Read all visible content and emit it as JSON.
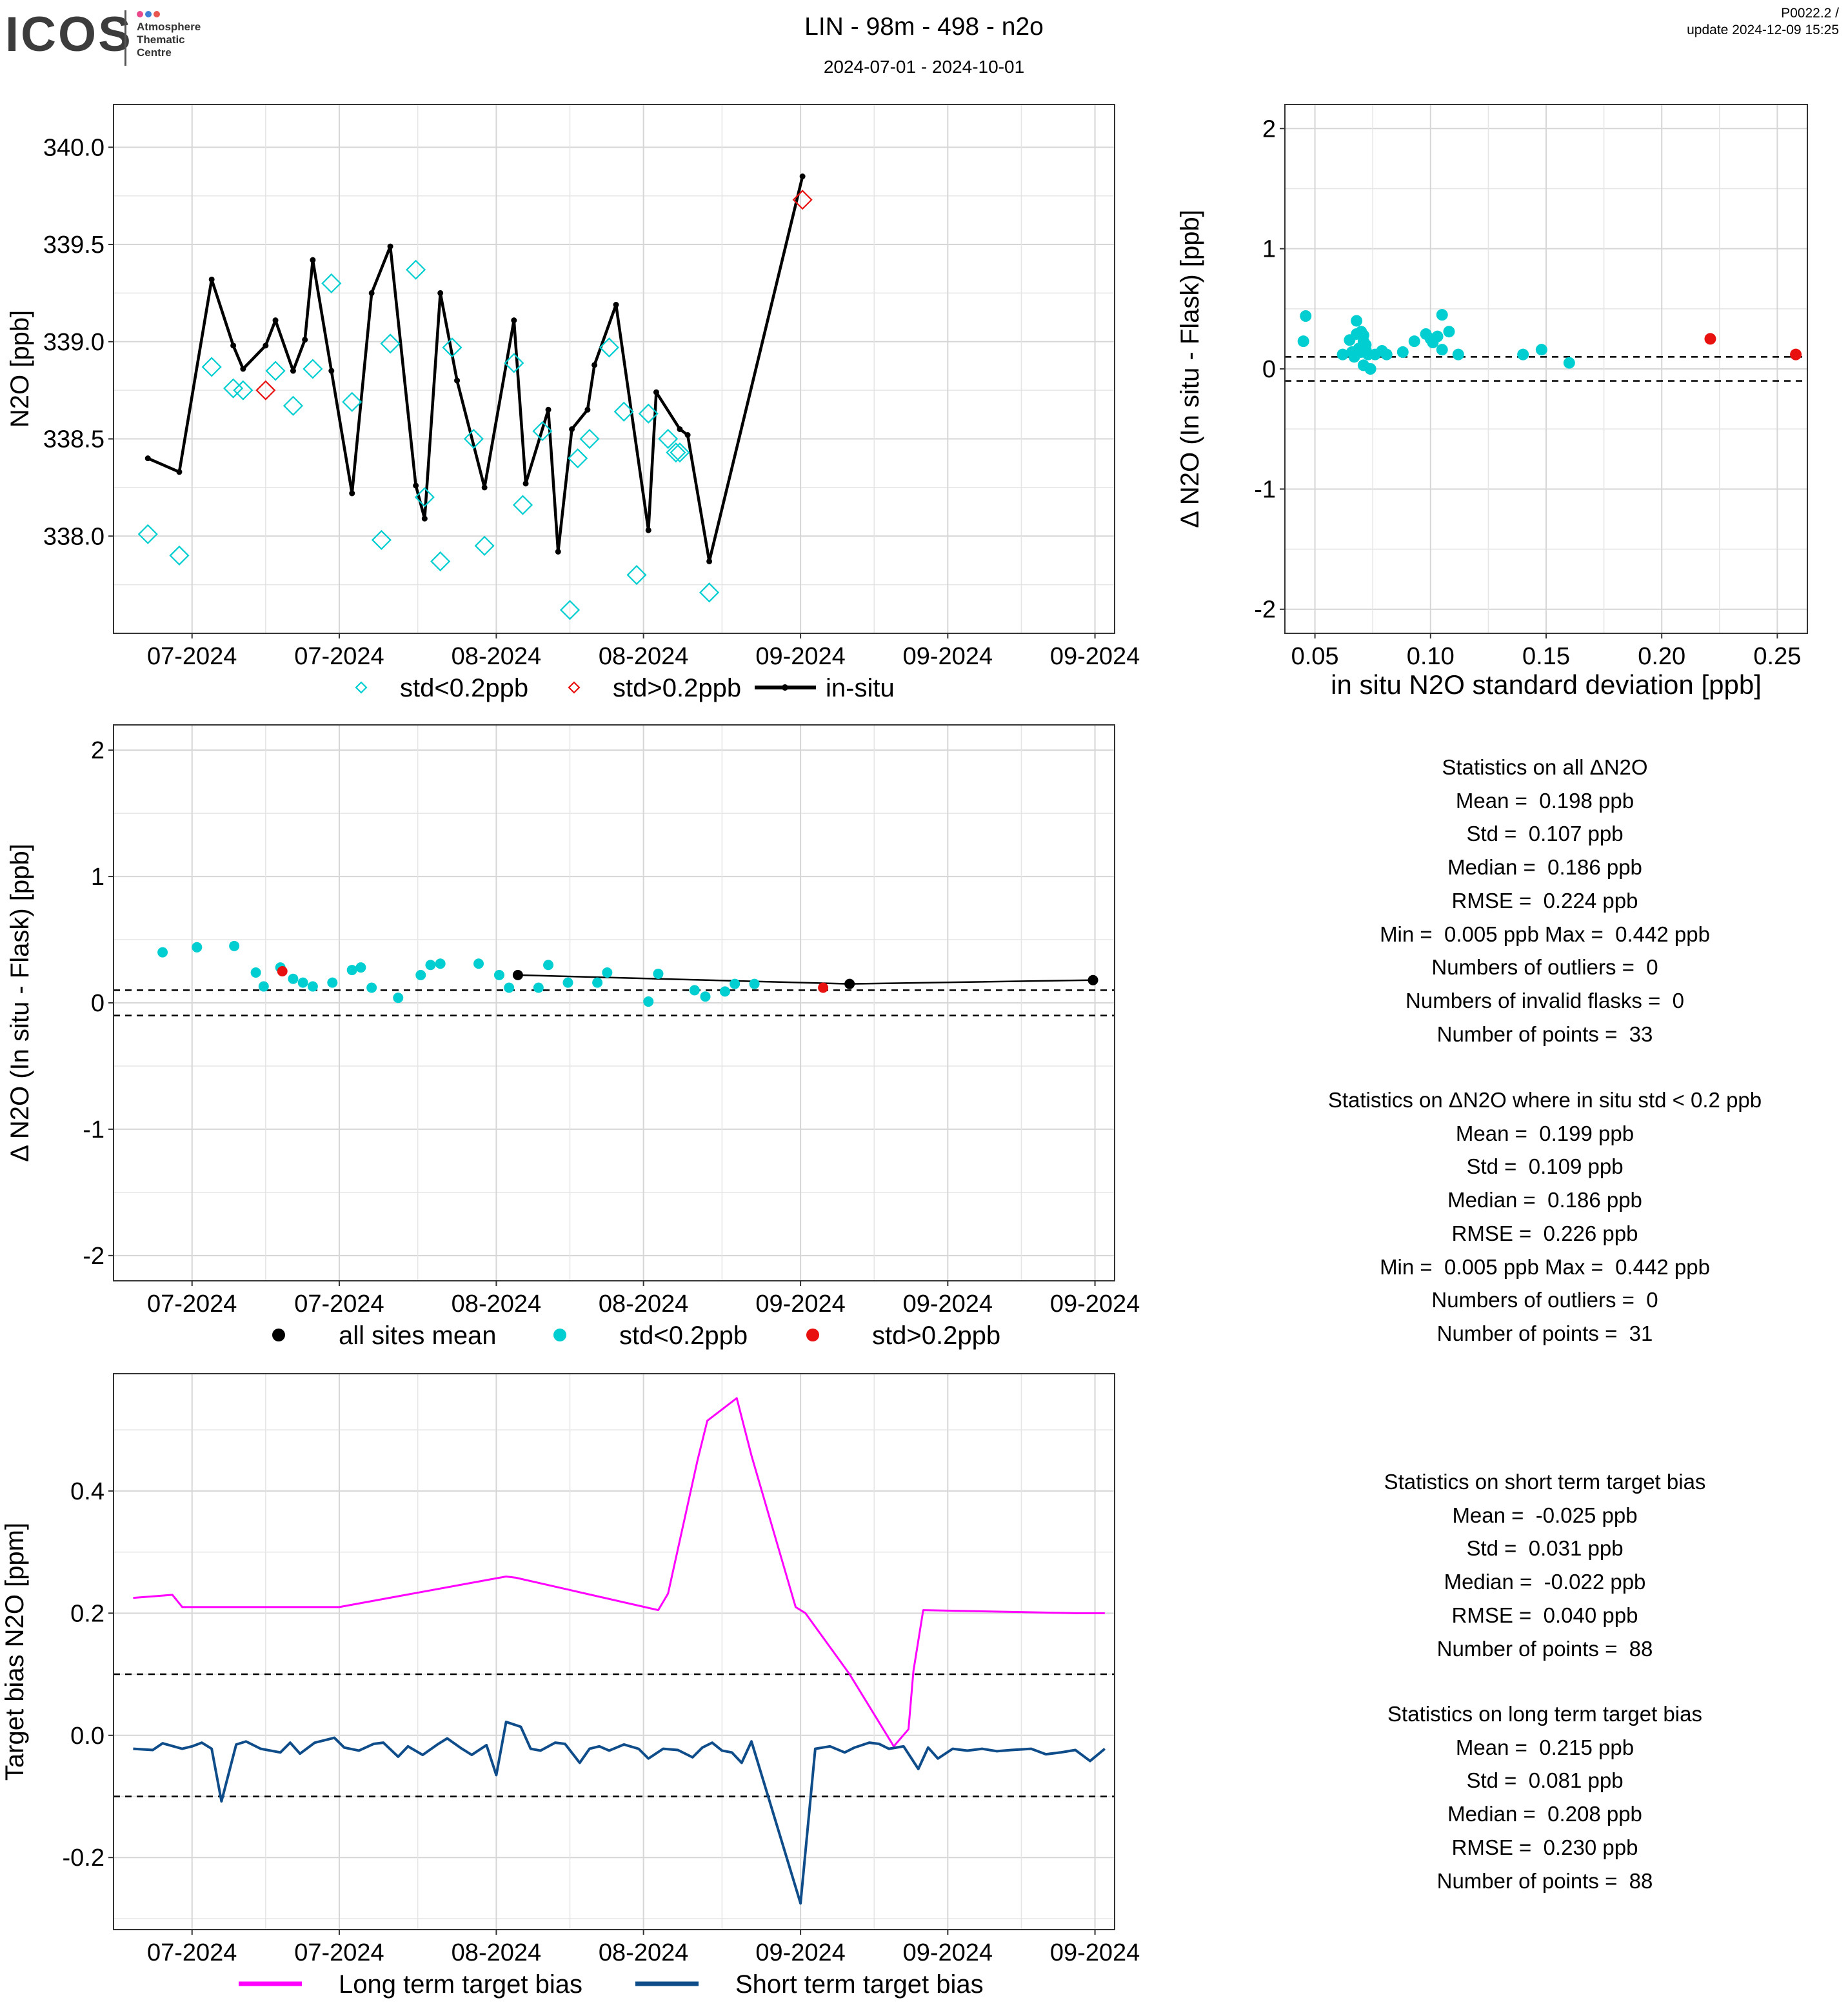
{
  "header": {
    "title": "LIN - 98m - 498 - n2o",
    "dates": "2024-07-01 - 2024-10-01",
    "version": "P0022.2 /",
    "update": "update  2024-12-09 15:25",
    "logo": "ICOS",
    "logo_lines": [
      "Atmosphere",
      "Thematic",
      "Centre"
    ]
  },
  "colors": {
    "cyan": "#00CED1",
    "red": "#E8110F",
    "black": "#000000",
    "magenta": "#FF00FF",
    "navy": "#0F4C8A",
    "grid": "#E5E5E5",
    "grid_major": "#D6D6D6"
  },
  "chart_data": [
    {
      "type": "scatter",
      "id": "timeseries_n2o",
      "ylabel": "N2O [ppb]",
      "x_ticks": [
        "07-2024",
        "07-2024",
        "08-2024",
        "08-2024",
        "09-2024",
        "09-2024",
        "09-2024"
      ],
      "x_tick_days": [
        15,
        30,
        46,
        61,
        77,
        92,
        107
      ],
      "xlim": [
        7,
        109
      ],
      "ylim": [
        337.5,
        340.22
      ],
      "y_ticks": [
        338.0,
        338.5,
        339.0,
        339.5,
        340.0
      ],
      "y_tick_labels": [
        "338.0",
        "338.5",
        "339.0",
        "339.5",
        "340.0"
      ],
      "legend": [
        "std<0.2ppb",
        "std>0.2ppb",
        "in-situ"
      ],
      "series": [
        {
          "name": "std<0.2ppb",
          "x": [
            10.5,
            13.7,
            17.0,
            19.2,
            20.2,
            23.5,
            25.3,
            27.3,
            29.2,
            31.3,
            34.3,
            35.2,
            37.8,
            38.7,
            40.3,
            41.5,
            43.7,
            44.8,
            47.8,
            48.7,
            50.7,
            53.5,
            54.3,
            55.5,
            57.5,
            59.0,
            60.3,
            61.5,
            63.5,
            64.3,
            64.7,
            67.7
          ],
          "y": [
            338.01,
            337.9,
            338.87,
            338.76,
            338.75,
            338.85,
            338.67,
            338.86,
            339.3,
            338.69,
            337.98,
            338.99,
            339.37,
            338.2,
            337.87,
            338.97,
            338.5,
            337.95,
            338.89,
            338.16,
            338.54,
            337.62,
            338.4,
            338.5,
            338.97,
            338.64,
            337.8,
            338.63,
            338.5,
            338.43,
            338.43,
            337.71
          ]
        },
        {
          "name": "std>0.2ppb",
          "x": [
            22.5,
            77.2
          ],
          "y": [
            338.75,
            339.73
          ]
        },
        {
          "name": "in-situ",
          "x": [
            10.5,
            13.7,
            17.0,
            19.2,
            20.2,
            22.5,
            23.5,
            25.3,
            26.5,
            27.3,
            29.2,
            31.3,
            33.3,
            35.2,
            37.8,
            38.7,
            40.3,
            42.0,
            44.8,
            47.8,
            49.0,
            51.3,
            52.3,
            53.7,
            55.3,
            56.0,
            58.2,
            61.5,
            62.3,
            64.7,
            65.5,
            67.7,
            77.2
          ],
          "y": [
            338.4,
            338.33,
            339.32,
            338.98,
            338.86,
            338.98,
            339.11,
            338.85,
            339.01,
            339.42,
            338.85,
            338.22,
            339.25,
            339.49,
            338.26,
            338.09,
            339.25,
            338.8,
            338.25,
            339.11,
            338.27,
            338.65,
            337.92,
            338.55,
            338.65,
            338.88,
            339.19,
            338.03,
            338.74,
            338.55,
            338.52,
            337.87,
            339.85
          ]
        }
      ]
    },
    {
      "type": "scatter",
      "id": "delta_vs_std",
      "xlabel": "in situ N2O standard deviation [ppb]",
      "ylabel": "Δ N2O (In situ - Flask) [ppb]",
      "xlim": [
        0.037,
        0.263
      ],
      "ylim": [
        -2.2,
        2.2
      ],
      "x_ticks": [
        0.05,
        0.1,
        0.15,
        0.2,
        0.25
      ],
      "x_tick_labels": [
        "0.05",
        "0.10",
        "0.15",
        "0.20",
        "0.25"
      ],
      "y_ticks": [
        -2,
        -1,
        0,
        1,
        2
      ],
      "y_tick_labels": [
        "-2",
        "-1",
        "0",
        "1",
        "2"
      ],
      "hlines": [
        0.1,
        -0.1
      ],
      "series": [
        {
          "name": "std<0.2ppb",
          "x": [
            0.046,
            0.045,
            0.062,
            0.065,
            0.066,
            0.067,
            0.068,
            0.068,
            0.069,
            0.07,
            0.07,
            0.071,
            0.071,
            0.071,
            0.072,
            0.072,
            0.073,
            0.074,
            0.076,
            0.079,
            0.081,
            0.088,
            0.093,
            0.098,
            0.1,
            0.101,
            0.103,
            0.105,
            0.105,
            0.108,
            0.112,
            0.14,
            0.148,
            0.16
          ],
          "y": [
            0.44,
            0.23,
            0.12,
            0.24,
            0.14,
            0.1,
            0.29,
            0.4,
            0.17,
            0.14,
            0.31,
            0.28,
            0.23,
            0.03,
            0.2,
            0.16,
            0.12,
            0.0,
            0.12,
            0.15,
            0.12,
            0.14,
            0.23,
            0.29,
            0.25,
            0.22,
            0.27,
            0.45,
            0.16,
            0.31,
            0.12,
            0.12,
            0.16,
            0.05
          ]
        },
        {
          "name": "std>0.2ppb",
          "x": [
            0.221,
            0.258
          ],
          "y": [
            0.25,
            0.12
          ]
        }
      ]
    },
    {
      "type": "scatter",
      "id": "delta_timeseries",
      "ylabel": "Δ N2O (In situ - Flask) [ppb]",
      "x_ticks": [
        "07-2024",
        "07-2024",
        "08-2024",
        "08-2024",
        "09-2024",
        "09-2024",
        "09-2024"
      ],
      "x_tick_days": [
        15,
        30,
        46,
        61,
        77,
        92,
        107
      ],
      "xlim": [
        7,
        109
      ],
      "ylim": [
        -2.2,
        2.2
      ],
      "y_ticks": [
        -2,
        -1,
        0,
        1,
        2
      ],
      "y_tick_labels": [
        "-2",
        "-1",
        "0",
        "1",
        "2"
      ],
      "hlines": [
        0.1,
        -0.1
      ],
      "legend": [
        "all sites mean",
        "std<0.2ppb",
        "std>0.2ppb"
      ],
      "series": [
        {
          "name": "std<0.2ppb",
          "x": [
            12.0,
            15.5,
            19.3,
            21.5,
            22.3,
            24.0,
            25.3,
            26.3,
            27.3,
            29.3,
            31.3,
            32.2,
            33.3,
            36.0,
            38.3,
            39.3,
            40.3,
            44.2,
            46.3,
            47.3,
            50.3,
            51.3,
            53.3,
            56.3,
            57.3,
            61.5,
            62.5,
            66.2,
            67.3,
            69.3,
            70.3,
            72.3
          ],
          "y": [
            0.4,
            0.44,
            0.45,
            0.24,
            0.13,
            0.28,
            0.19,
            0.16,
            0.13,
            0.16,
            0.26,
            0.28,
            0.12,
            0.04,
            0.22,
            0.3,
            0.31,
            0.31,
            0.22,
            0.12,
            0.12,
            0.3,
            0.16,
            0.16,
            0.24,
            0.01,
            0.23,
            0.1,
            0.05,
            0.09,
            0.15,
            0.15
          ]
        },
        {
          "name": "std>0.2ppb",
          "x": [
            24.2,
            79.3
          ],
          "y": [
            0.25,
            0.12
          ]
        },
        {
          "name": "all sites mean",
          "x": [
            48.2,
            82.0,
            106.8
          ],
          "y": [
            0.22,
            0.15,
            0.18
          ]
        }
      ]
    },
    {
      "type": "line",
      "id": "target_bias",
      "ylabel": "Target bias N2O [ppm]",
      "x_ticks": [
        "07-2024",
        "07-2024",
        "08-2024",
        "08-2024",
        "09-2024",
        "09-2024",
        "09-2024"
      ],
      "x_tick_days": [
        15,
        30,
        46,
        61,
        77,
        92,
        107
      ],
      "xlim": [
        7,
        109
      ],
      "ylim": [
        -0.318,
        0.592
      ],
      "y_ticks": [
        -0.2,
        0.0,
        0.2,
        0.4
      ],
      "y_tick_labels": [
        "-0.2",
        "0.0",
        "0.2",
        "0.4"
      ],
      "hlines": [
        0.1,
        -0.1
      ],
      "legend": [
        "Long term target bias",
        "Short term target bias"
      ],
      "series": [
        {
          "name": "Long term target bias",
          "x": [
            9.0,
            13.0,
            14.0,
            22.0,
            30.0,
            47.0,
            48.0,
            62.5,
            63.5,
            66.5,
            67.5,
            70.5,
            72.0,
            76.5,
            77.5,
            82.0,
            86.5,
            88.0,
            88.5,
            89.5,
            105.0,
            108.0
          ],
          "y": [
            0.225,
            0.23,
            0.21,
            0.21,
            0.21,
            0.26,
            0.258,
            0.205,
            0.232,
            0.45,
            0.515,
            0.552,
            0.458,
            0.21,
            0.2,
            0.1,
            -0.018,
            0.01,
            0.105,
            0.205,
            0.2,
            0.2
          ]
        },
        {
          "name": "Short term target bias",
          "x": [
            9.0,
            11.0,
            12.0,
            14.0,
            15.0,
            16.0,
            17.0,
            18.0,
            19.5,
            20.5,
            22.0,
            24.0,
            25.0,
            26.0,
            27.5,
            29.5,
            30.5,
            32.0,
            33.5,
            34.5,
            36.0,
            37.0,
            38.5,
            40.0,
            41.0,
            42.5,
            43.5,
            45.0,
            46.0,
            47.0,
            48.5,
            49.5,
            50.5,
            52.0,
            53.0,
            54.5,
            55.5,
            56.5,
            57.5,
            59.0,
            60.5,
            61.5,
            63.0,
            64.5,
            66.0,
            67.0,
            68.0,
            69.0,
            70.0,
            71.0,
            72.0,
            77.0,
            78.5,
            80.0,
            81.5,
            82.5,
            84.0,
            85.0,
            86.0,
            87.5,
            89.0,
            90.0,
            91.0,
            92.5,
            94.0,
            95.5,
            97.0,
            98.5,
            100.5,
            102.0,
            103.5,
            105.0,
            106.5,
            108.0
          ],
          "y": [
            -0.022,
            -0.024,
            -0.013,
            -0.022,
            -0.018,
            -0.012,
            -0.022,
            -0.108,
            -0.015,
            -0.01,
            -0.022,
            -0.028,
            -0.012,
            -0.03,
            -0.012,
            -0.004,
            -0.02,
            -0.025,
            -0.014,
            -0.012,
            -0.035,
            -0.018,
            -0.032,
            -0.015,
            -0.005,
            -0.022,
            -0.032,
            -0.016,
            -0.065,
            0.022,
            0.014,
            -0.022,
            -0.025,
            -0.012,
            -0.014,
            -0.045,
            -0.022,
            -0.018,
            -0.025,
            -0.015,
            -0.022,
            -0.038,
            -0.022,
            -0.024,
            -0.036,
            -0.02,
            -0.012,
            -0.025,
            -0.028,
            -0.045,
            -0.01,
            -0.275,
            -0.022,
            -0.018,
            -0.028,
            -0.02,
            -0.012,
            -0.014,
            -0.022,
            -0.018,
            -0.055,
            -0.02,
            -0.038,
            -0.022,
            -0.025,
            -0.022,
            -0.026,
            -0.024,
            -0.022,
            -0.031,
            -0.028,
            -0.024,
            -0.042,
            -0.022
          ]
        }
      ]
    }
  ],
  "stats": {
    "block1": [
      "Statistics on all ΔN2O",
      "Mean =  0.198 ppb",
      "Std =  0.107 ppb",
      "Median =  0.186 ppb",
      "RMSE =  0.224 ppb",
      "Min =  0.005 ppb Max =  0.442 ppb",
      "Numbers of outliers =  0",
      "Numbers of invalid flasks =  0",
      "Number of points =  33"
    ],
    "block2": [
      "Statistics on ΔN2O where in situ std < 0.2 ppb",
      "Mean =  0.199 ppb",
      "Std =  0.109 ppb",
      "Median =  0.186 ppb",
      "RMSE =  0.226 ppb",
      "Min =  0.005 ppb Max =  0.442 ppb",
      "Numbers of outliers =  0",
      "Number of points =  31"
    ],
    "block3": [
      "Statistics on short term target bias",
      "Mean =  -0.025 ppb",
      "Std =  0.031 ppb",
      "Median =  -0.022 ppb",
      "RMSE =  0.040 ppb",
      "Number of points =  88"
    ],
    "block4": [
      "Statistics on long term target bias",
      "Mean =  0.215 ppb",
      "Std =  0.081 ppb",
      "Median =  0.208 ppb",
      "RMSE =  0.230 ppb",
      "Number of points =  88"
    ]
  }
}
